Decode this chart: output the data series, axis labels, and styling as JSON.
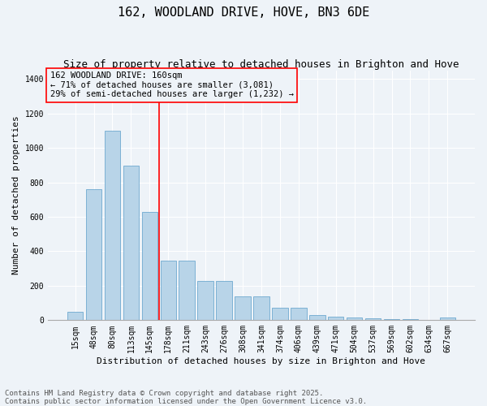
{
  "title": "162, WOODLAND DRIVE, HOVE, BN3 6DE",
  "subtitle": "Size of property relative to detached houses in Brighton and Hove",
  "xlabel": "Distribution of detached houses by size in Brighton and Hove",
  "ylabel": "Number of detached properties",
  "footer_line1": "Contains HM Land Registry data © Crown copyright and database right 2025.",
  "footer_line2": "Contains public sector information licensed under the Open Government Licence v3.0.",
  "categories": [
    "15sqm",
    "48sqm",
    "80sqm",
    "113sqm",
    "145sqm",
    "178sqm",
    "211sqm",
    "243sqm",
    "276sqm",
    "308sqm",
    "341sqm",
    "374sqm",
    "406sqm",
    "439sqm",
    "471sqm",
    "504sqm",
    "537sqm",
    "569sqm",
    "602sqm",
    "634sqm",
    "667sqm"
  ],
  "values": [
    50,
    760,
    1100,
    895,
    630,
    345,
    345,
    230,
    230,
    140,
    140,
    72,
    72,
    30,
    20,
    15,
    12,
    5,
    5,
    2,
    15
  ],
  "bar_color": "#b8d4e8",
  "bar_edge_color": "#5a9ec9",
  "vline_x": 4.5,
  "vline_color": "red",
  "annotation_text": "162 WOODLAND DRIVE: 160sqm\n← 71% of detached houses are smaller (3,081)\n29% of semi-detached houses are larger (1,232) →",
  "annotation_box_color": "red",
  "ylim": [
    0,
    1450
  ],
  "yticks": [
    0,
    200,
    400,
    600,
    800,
    1000,
    1200,
    1400
  ],
  "background_color": "#eef3f8",
  "grid_color": "white",
  "title_fontsize": 11,
  "subtitle_fontsize": 9,
  "axis_label_fontsize": 8,
  "tick_fontsize": 7,
  "annotation_fontsize": 7.5,
  "footer_fontsize": 6.5
}
